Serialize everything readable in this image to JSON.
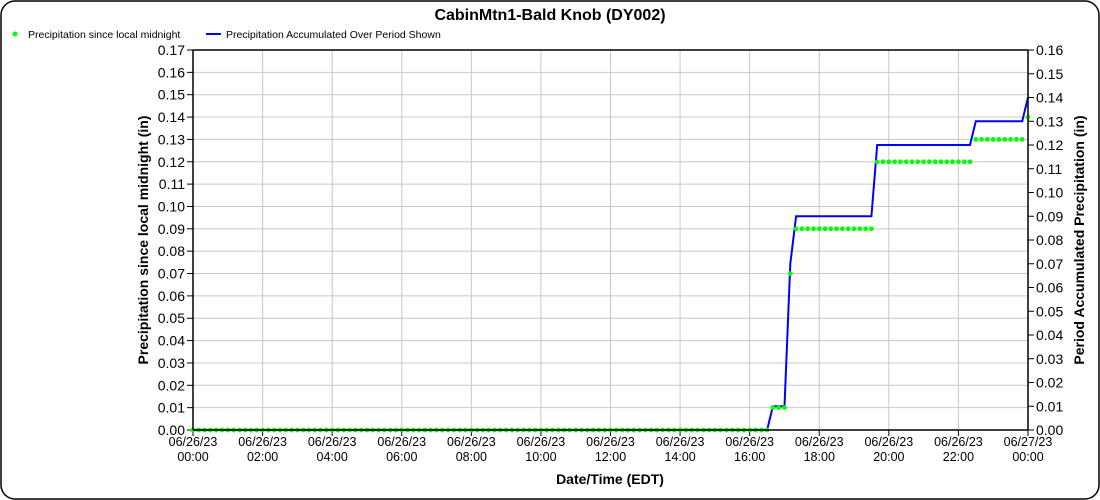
{
  "chart_data": {
    "type": "line",
    "title": "CabinMtn1-Bald Knob (DY002)",
    "xlabel": "Date/Time (EDT)",
    "ylabel_left": "Precipitation since local midnight (in)",
    "ylabel_right": "Period Accumulated Precipitation (in)",
    "ylim_left": [
      0,
      0.17
    ],
    "ylim_right": [
      0,
      0.16
    ],
    "yticks_left": [
      "0.00",
      "0.01",
      "0.02",
      "0.03",
      "0.04",
      "0.05",
      "0.06",
      "0.07",
      "0.08",
      "0.09",
      "0.10",
      "0.11",
      "0.12",
      "0.13",
      "0.14",
      "0.15",
      "0.16",
      "0.17"
    ],
    "yticks_right": [
      "0.00",
      "0.01",
      "0.02",
      "0.03",
      "0.04",
      "0.05",
      "0.06",
      "0.07",
      "0.08",
      "0.09",
      "0.10",
      "0.11",
      "0.12",
      "0.13",
      "0.14",
      "0.15",
      "0.16"
    ],
    "xticks": [
      [
        "06/26/23",
        "00:00"
      ],
      [
        "06/26/23",
        "02:00"
      ],
      [
        "06/26/23",
        "04:00"
      ],
      [
        "06/26/23",
        "06:00"
      ],
      [
        "06/26/23",
        "08:00"
      ],
      [
        "06/26/23",
        "10:00"
      ],
      [
        "06/26/23",
        "12:00"
      ],
      [
        "06/26/23",
        "14:00"
      ],
      [
        "06/26/23",
        "16:00"
      ],
      [
        "06/26/23",
        "18:00"
      ],
      [
        "06/26/23",
        "20:00"
      ],
      [
        "06/26/23",
        "22:00"
      ],
      [
        "06/27/23",
        "00:00"
      ]
    ],
    "grid": true,
    "legend_position": "top-left",
    "interval_minutes": 10,
    "series": [
      {
        "name": "Precipitation since local midnight",
        "style": "dots",
        "axis": "left",
        "color": "#00ff00",
        "runs": [
          {
            "from": "06/26/23 00:00",
            "to": "06/26/23 16:30",
            "value": 0.0
          },
          {
            "from": "06/26/23 16:40",
            "to": "06/26/23 17:00",
            "value": 0.01
          },
          {
            "from": "06/26/23 17:10",
            "to": "06/26/23 17:10",
            "value": 0.07
          },
          {
            "from": "06/26/23 17:20",
            "to": "06/26/23 19:30",
            "value": 0.09
          },
          {
            "from": "06/26/23 19:40",
            "to": "06/26/23 22:20",
            "value": 0.12
          },
          {
            "from": "06/26/23 22:30",
            "to": "06/26/23 23:50",
            "value": 0.13
          },
          {
            "from": "06/27/23 00:00",
            "to": "06/27/23 00:00",
            "value": 0.14
          }
        ]
      },
      {
        "name": "Precipitation Accumulated Over Period Shown",
        "style": "line",
        "axis": "right",
        "color": "#0000ff",
        "runs": [
          {
            "from": "06/26/23 00:00",
            "to": "06/26/23 16:30",
            "value": 0.0
          },
          {
            "from": "06/26/23 16:40",
            "to": "06/26/23 17:00",
            "value": 0.01
          },
          {
            "from": "06/26/23 17:10",
            "to": "06/26/23 17:10",
            "value": 0.07
          },
          {
            "from": "06/26/23 17:20",
            "to": "06/26/23 19:30",
            "value": 0.09
          },
          {
            "from": "06/26/23 19:40",
            "to": "06/26/23 22:20",
            "value": 0.12
          },
          {
            "from": "06/26/23 22:30",
            "to": "06/26/23 23:50",
            "value": 0.13
          },
          {
            "from": "06/27/23 00:00",
            "to": "06/27/23 00:00",
            "value": 0.14
          }
        ]
      }
    ]
  }
}
